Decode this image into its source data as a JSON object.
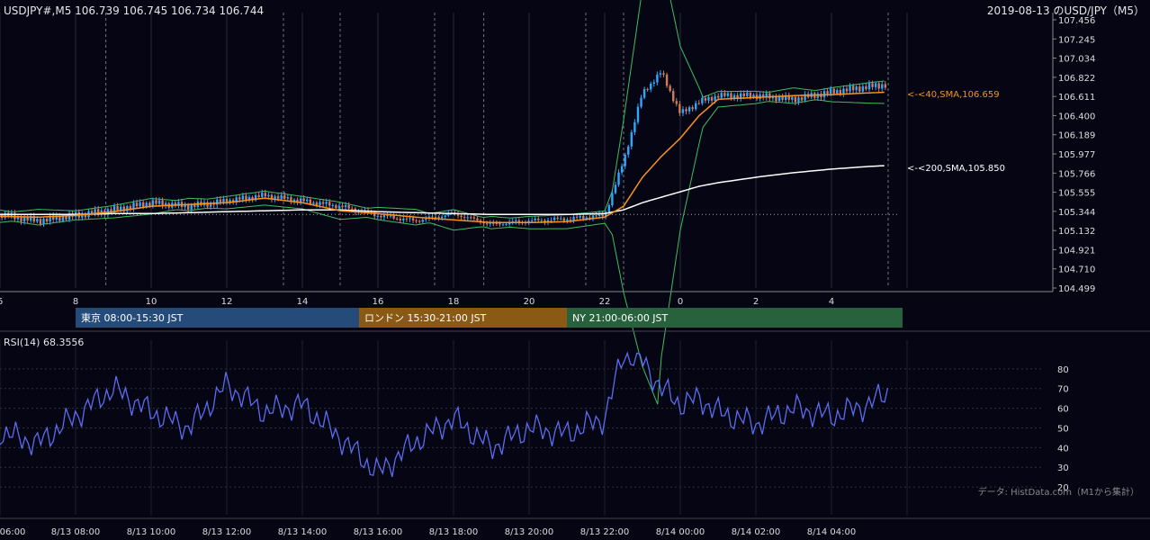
{
  "header": {
    "ohlc": "USDJPY#,M5 106.739 106.745 106.734 106.744",
    "title": "2019-08-13 のUSD/JPY（M5）"
  },
  "price_axis": {
    "ticks": [
      "107.456",
      "107.245",
      "107.034",
      "106.822",
      "106.611",
      "106.400",
      "106.189",
      "105.977",
      "105.766",
      "105.555",
      "105.344",
      "105.132",
      "104.921",
      "104.710",
      "104.499"
    ]
  },
  "hour_axis": {
    "ticks": [
      "6",
      "8",
      "10",
      "12",
      "14",
      "16",
      "18",
      "20",
      "22",
      "0",
      "2",
      "4"
    ]
  },
  "sessions": [
    {
      "label": "東京 08:00-15:30 JST",
      "color": "#244b7a"
    },
    {
      "label": "ロンドン 15:30-21:00 JST",
      "color": "#8a5a14"
    },
    {
      "label": "NY 21:00-06:00 JST",
      "color": "#27623c"
    }
  ],
  "annotations": {
    "sma40": "<-<40,SMA,106.659",
    "sma200": "<-<200,SMA,105.850"
  },
  "rsi": {
    "title": "RSI(14) 68.3556",
    "ticks": [
      "80",
      "70",
      "60",
      "50",
      "40",
      "30",
      "20"
    ]
  },
  "time_axis": {
    "ticks": [
      "06:00",
      "8/13 08:00",
      "8/13 10:00",
      "8/13 12:00",
      "8/13 14:00",
      "8/13 16:00",
      "8/13 18:00",
      "8/13 20:00",
      "8/13 22:00",
      "8/14 00:00",
      "8/14 02:00",
      "8/14 04:00"
    ]
  },
  "source": "データ: HistData.com（M1から集計）",
  "colors": {
    "background": "#050514",
    "candle": "#2ea8ff",
    "candle_down": "#d07a60",
    "sma40": "#f7931e",
    "sma200": "#ffffff",
    "bollinger": "#3fbf5f",
    "rsi": "#5b6cf0"
  },
  "chart_data": [
    {
      "type": "line",
      "title": "2019-08-13 のUSD/JPY（M5）",
      "ylim": [
        104.499,
        107.456
      ],
      "x": [
        6,
        7,
        8,
        9,
        10,
        11,
        12,
        13,
        14,
        15,
        16,
        17,
        18,
        19,
        20,
        21,
        22,
        22.5,
        23,
        23.5,
        24,
        24.5,
        25,
        26,
        27,
        28,
        29,
        29.5
      ],
      "series": [
        {
          "name": "close",
          "values": [
            105.31,
            105.24,
            105.3,
            105.36,
            105.44,
            105.4,
            105.46,
            105.52,
            105.46,
            105.4,
            105.3,
            105.24,
            105.32,
            105.2,
            105.24,
            105.26,
            105.3,
            105.9,
            106.65,
            106.88,
            106.42,
            106.55,
            106.62,
            106.62,
            106.58,
            106.66,
            106.72,
            106.744
          ]
        },
        {
          "name": "40,SMA",
          "values": [
            105.29,
            105.28,
            105.3,
            105.34,
            105.4,
            105.42,
            105.44,
            105.49,
            105.44,
            105.35,
            105.32,
            105.28,
            105.25,
            105.22,
            105.22,
            105.23,
            105.28,
            105.4,
            105.72,
            105.95,
            106.15,
            106.4,
            106.58,
            106.6,
            106.62,
            106.63,
            106.65,
            106.659
          ]
        },
        {
          "name": "200,SMA",
          "values": [
            105.31,
            105.31,
            105.31,
            105.32,
            105.32,
            105.33,
            105.34,
            105.35,
            105.36,
            105.36,
            105.34,
            105.33,
            105.32,
            105.31,
            105.31,
            105.31,
            105.32,
            105.36,
            105.44,
            105.5,
            105.56,
            105.62,
            105.66,
            105.72,
            105.77,
            105.81,
            105.84,
            105.85
          ]
        }
      ]
    },
    {
      "type": "line",
      "title": "RSI(14) 68.3556",
      "ylim": [
        15,
        90
      ],
      "x": [
        6,
        7,
        8,
        9,
        10,
        11,
        12,
        13,
        14,
        15,
        16,
        17,
        18,
        19,
        20,
        21,
        22,
        22.5,
        23,
        23.5,
        24,
        24.5,
        25,
        26,
        27,
        28,
        29,
        29.5
      ],
      "series": [
        {
          "name": "RSI(14)",
          "values": [
            48,
            42,
            56,
            70,
            58,
            50,
            72,
            58,
            62,
            45,
            27,
            43,
            55,
            40,
            50,
            47,
            55,
            88,
            84,
            70,
            62,
            65,
            58,
            52,
            60,
            56,
            62,
            68.36
          ]
        }
      ]
    }
  ]
}
